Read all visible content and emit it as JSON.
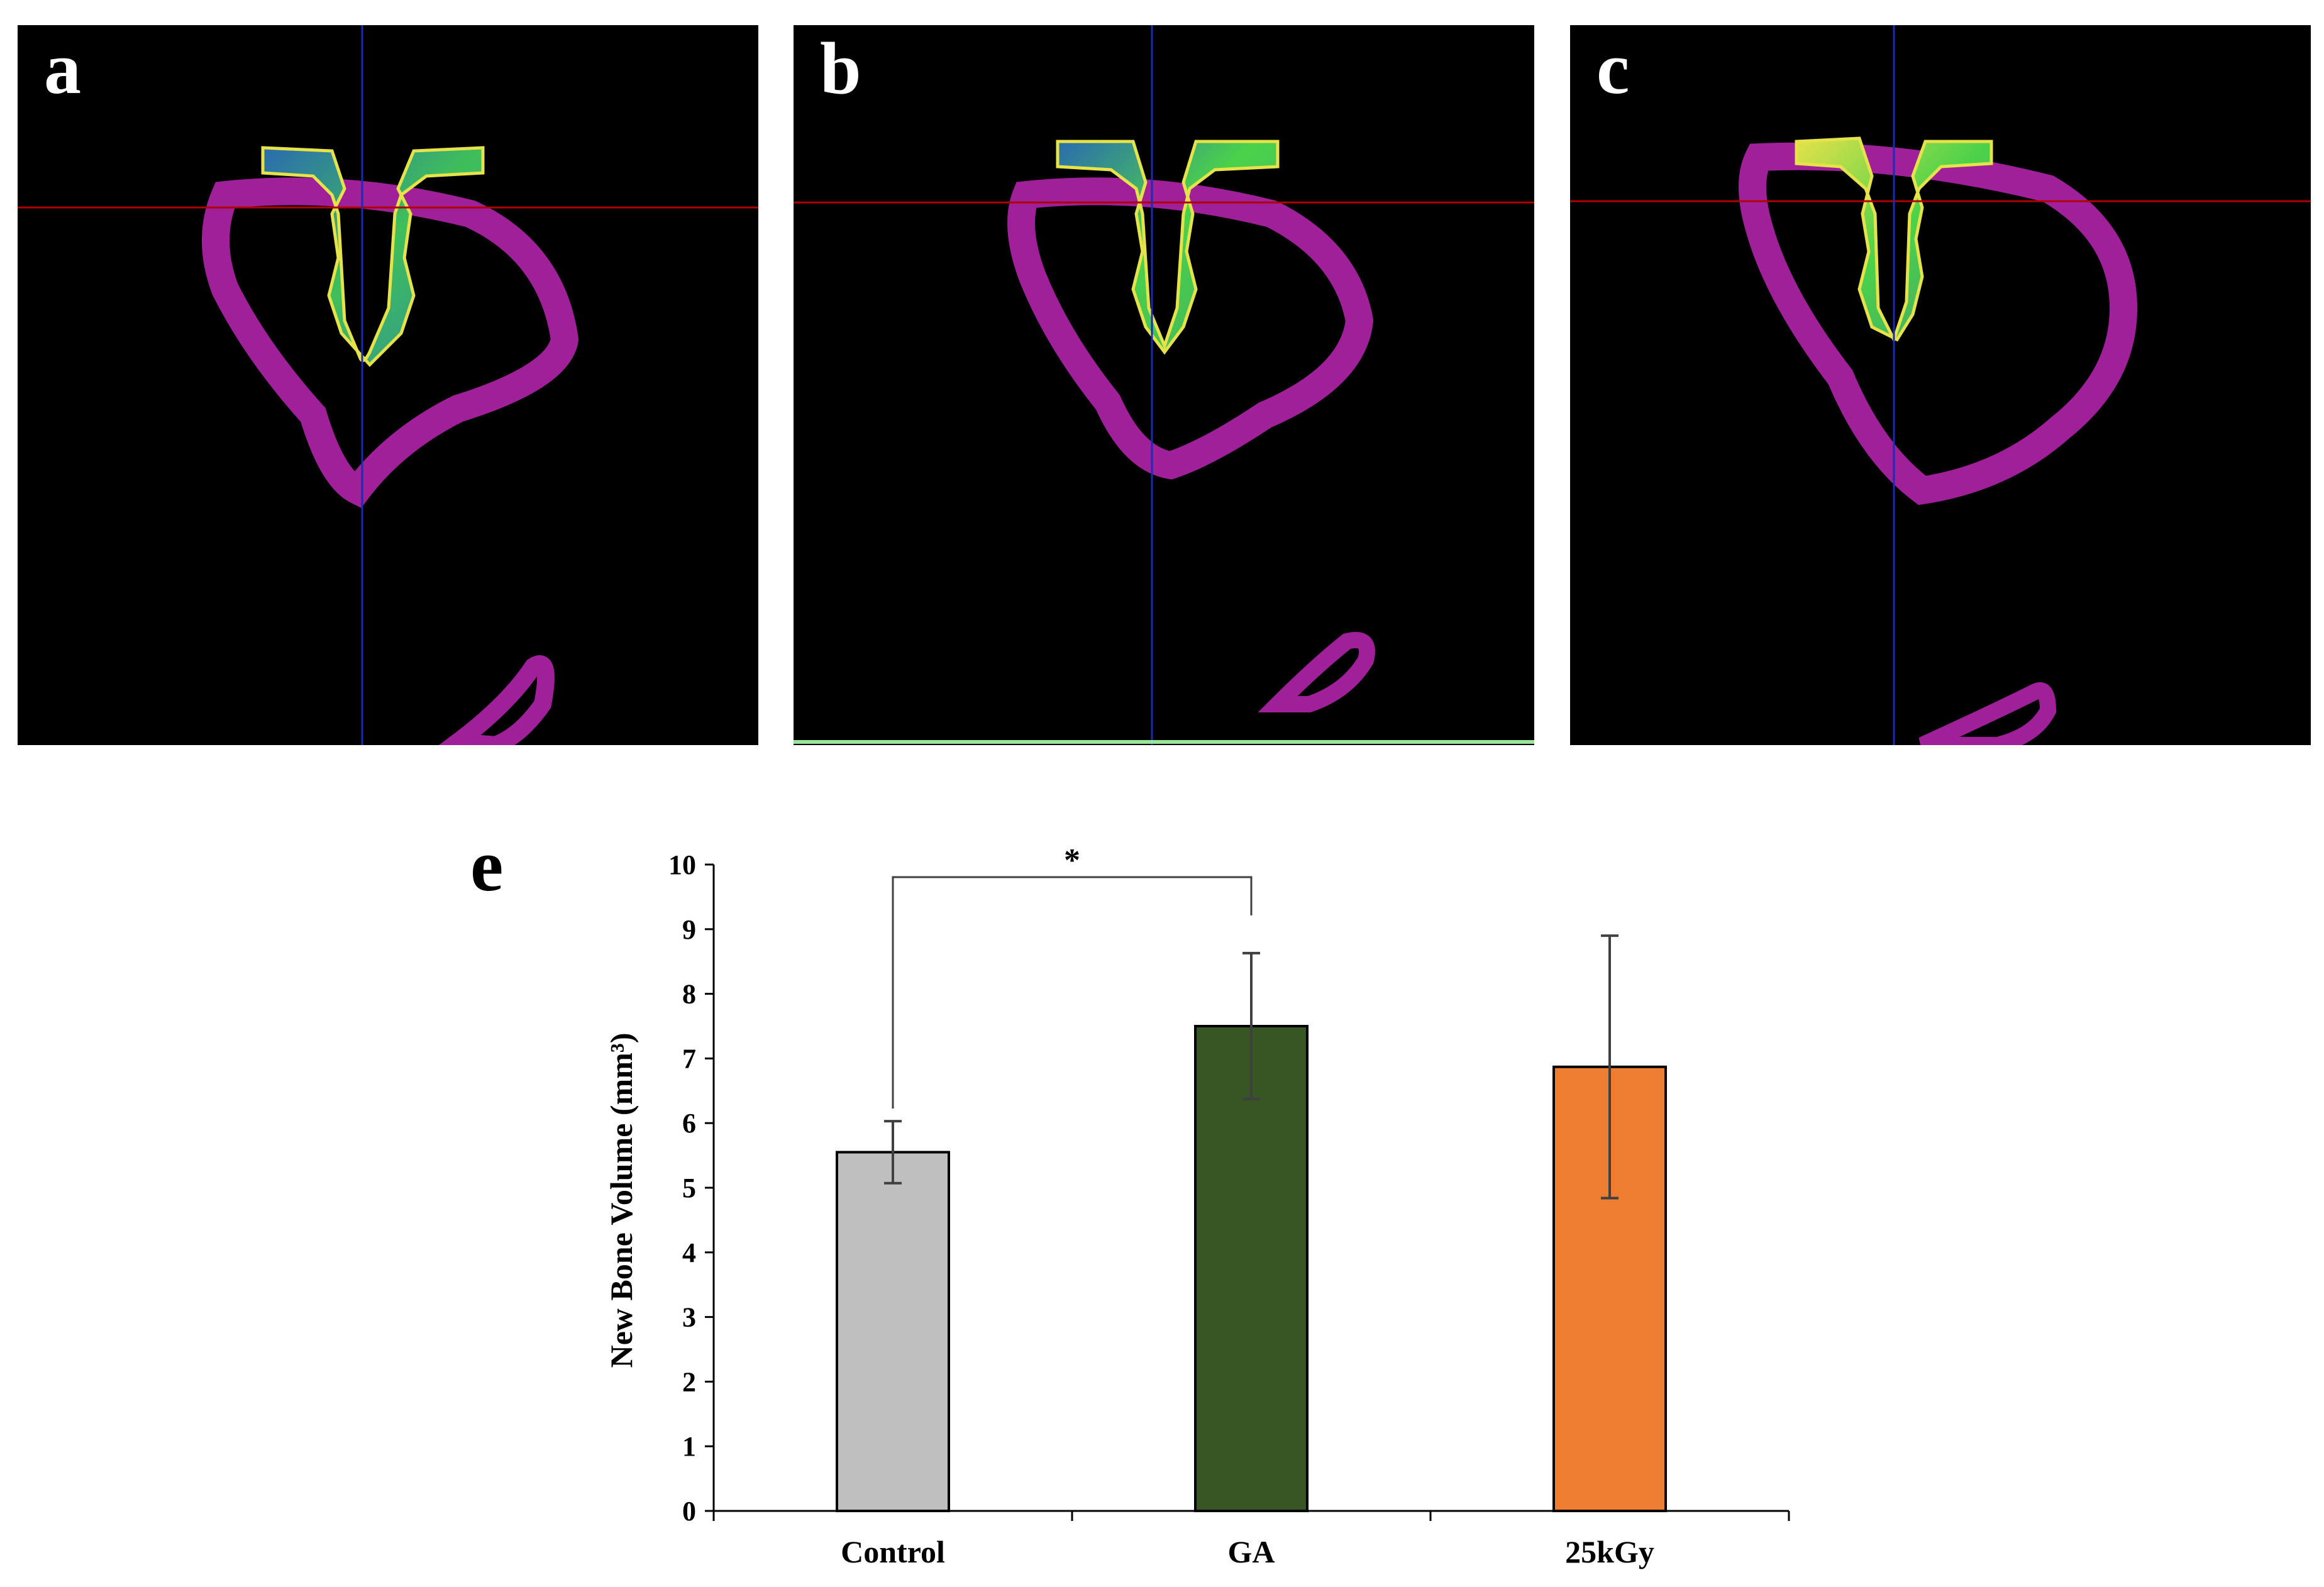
{
  "panels": [
    {
      "letter": "a",
      "image": "micro-CT cross-section with implant (Control)"
    },
    {
      "letter": "b",
      "image": "micro-CT cross-section with implant (GA)"
    },
    {
      "letter": "c",
      "image": "micro-CT cross-section with implant (25kGy)"
    }
  ],
  "colors": {
    "bone": "#a0209a",
    "implant_green": "#4cd24a",
    "implant_blue": "#2a6bb0",
    "implant_yellow": "#e6e24a",
    "crosshair_h": "#b00000",
    "crosshair_v": "#1a2bb8"
  },
  "chart_letter": "e",
  "chart_data": {
    "type": "bar",
    "categories": [
      "Control",
      "GA",
      "25kGy"
    ],
    "values": [
      5.55,
      7.5,
      6.87
    ],
    "errors": [
      0.48,
      1.13,
      2.03
    ],
    "colors": [
      "#bfbfbf",
      "#375623",
      "#ed7d31"
    ],
    "ylabel": "New Bone Volume (mm³)",
    "ylim": [
      0,
      10
    ],
    "yticks": [
      "0",
      "1",
      "2",
      "3",
      "4",
      "5",
      "6",
      "7",
      "8",
      "9",
      "10"
    ],
    "grid": false,
    "significance": {
      "from": "Control",
      "to": "GA",
      "label": "*"
    }
  }
}
